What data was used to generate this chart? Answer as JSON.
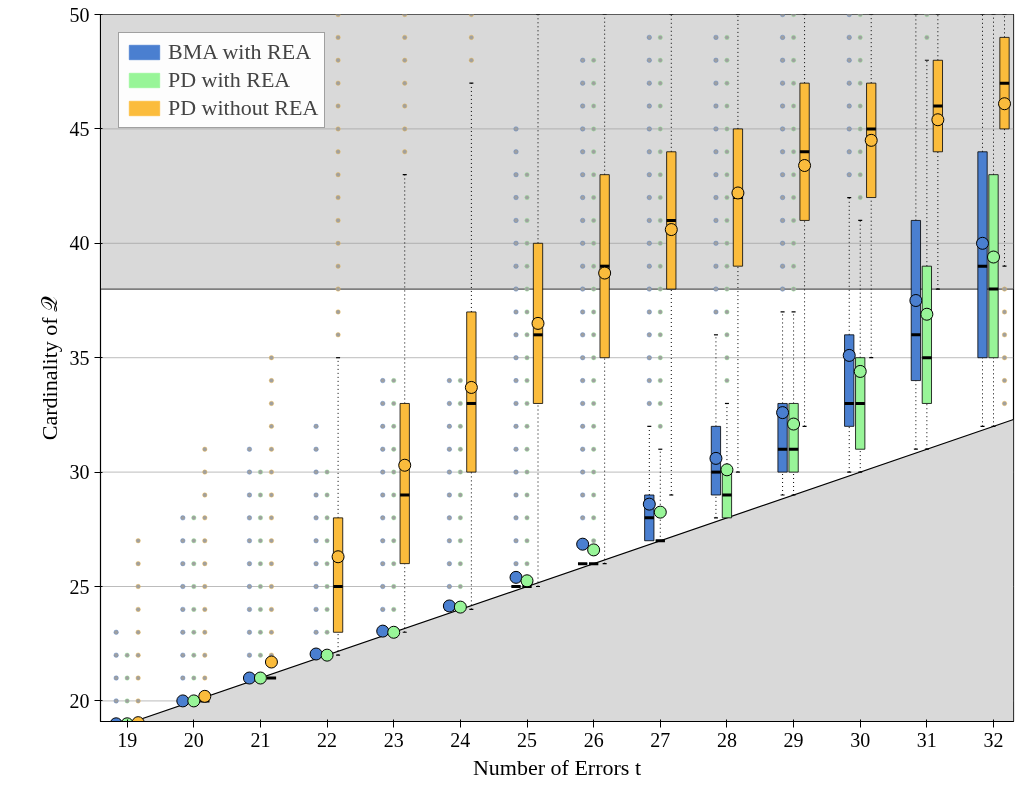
{
  "chart_data": {
    "type": "box",
    "xlabel": "Number of Errors t",
    "ylabel": "Cardinality of 𝒬",
    "x": [
      19,
      20,
      21,
      22,
      23,
      24,
      25,
      26,
      27,
      28,
      29,
      30,
      31,
      32
    ],
    "xlim": [
      18.6,
      32.3
    ],
    "xticks": [
      19,
      20,
      21,
      22,
      23,
      24,
      25,
      26,
      27,
      28,
      29,
      30,
      31,
      32
    ],
    "ylim": [
      19.1,
      50
    ],
    "yticks": [
      20,
      25,
      30,
      35,
      40,
      45,
      50
    ],
    "grid": "y",
    "legend": "top left",
    "bands": [
      {
        "axis": "y",
        "from": 38,
        "to": 50,
        "color": "#d9d9d9"
      }
    ],
    "ref_lines": [
      {
        "axis": "y",
        "value": 38,
        "color": "#555555"
      }
    ],
    "series": [
      {
        "name": "BMA with REA",
        "color": "#4a7fd0",
        "marker": "circle",
        "boxes": [
          {
            "low": 19,
            "q1": 19,
            "median": 19,
            "q3": 19,
            "high": 19,
            "mean": 19.0,
            "outliers": [
              20,
              21,
              22,
              23
            ]
          },
          {
            "low": 20,
            "q1": 20,
            "median": 20,
            "q3": 20,
            "high": 20,
            "mean": 20.0,
            "outliers": [
              21,
              22,
              23,
              24,
              25,
              26,
              27,
              28
            ]
          },
          {
            "low": 21,
            "q1": 21,
            "median": 21,
            "q3": 21,
            "high": 21,
            "mean": 21.0,
            "outliers": [
              22,
              23,
              24,
              25,
              26,
              27,
              28,
              29,
              30,
              31
            ]
          },
          {
            "low": 22,
            "q1": 22,
            "median": 22,
            "q3": 22,
            "high": 22,
            "mean": 22.05,
            "outliers": [
              23,
              24,
              25,
              26,
              27,
              28,
              29,
              30,
              31,
              32
            ]
          },
          {
            "low": 23,
            "q1": 23,
            "median": 23,
            "q3": 23,
            "high": 23,
            "mean": 23.05,
            "outliers": [
              24,
              25,
              26,
              27,
              28,
              29,
              30,
              31,
              32,
              33,
              34
            ]
          },
          {
            "low": 24,
            "q1": 24,
            "median": 24,
            "q3": 24,
            "high": 24,
            "mean": 24.15,
            "outliers": [
              25,
              26,
              27,
              28,
              29,
              30,
              31,
              32,
              33,
              34
            ]
          },
          {
            "low": 25,
            "q1": 25,
            "median": 25,
            "q3": 25,
            "high": 25,
            "mean": 25.4,
            "outliers": [
              26,
              27,
              28,
              29,
              30,
              31,
              32,
              33,
              34,
              35,
              36,
              37,
              38,
              39,
              40,
              41,
              42,
              43,
              44,
              45
            ]
          },
          {
            "low": 26,
            "q1": 26,
            "median": 26,
            "q3": 26,
            "high": 26,
            "mean": 26.85,
            "outliers": [
              27,
              28,
              29,
              30,
              31,
              32,
              33,
              34,
              35,
              36,
              37,
              38,
              39,
              40,
              41,
              42,
              43,
              44,
              45,
              46,
              47,
              48
            ]
          },
          {
            "low": 27,
            "q1": 27,
            "median": 28,
            "q3": 29,
            "high": 32,
            "mean": 28.6,
            "outliers": [
              33,
              34,
              35,
              36,
              37,
              38,
              39,
              40,
              41,
              42,
              43,
              44,
              45,
              46,
              47,
              48,
              49
            ]
          },
          {
            "low": 28,
            "q1": 29,
            "median": 30,
            "q3": 32,
            "high": 36,
            "mean": 30.6,
            "outliers": [
              37,
              38,
              39,
              40,
              41,
              42,
              43,
              44,
              45,
              46,
              47,
              48,
              49
            ]
          },
          {
            "low": 29,
            "q1": 30,
            "median": 31,
            "q3": 33,
            "high": 37,
            "mean": 32.6,
            "outliers": [
              38,
              39,
              40,
              41,
              42,
              43,
              44,
              45,
              46,
              47,
              48,
              49,
              50
            ]
          },
          {
            "low": 30,
            "q1": 32,
            "median": 33,
            "q3": 36,
            "high": 42,
            "mean": 35.1,
            "outliers": [
              43,
              44,
              45,
              46,
              47,
              48,
              49,
              50
            ]
          },
          {
            "low": 31,
            "q1": 34,
            "median": 36,
            "q3": 41,
            "high": 50,
            "mean": 37.5
          },
          {
            "low": 32,
            "q1": 35,
            "median": 39,
            "q3": 44,
            "high": 50,
            "mean": 40.0
          }
        ]
      },
      {
        "name": "PD with REA",
        "color": "#98f598",
        "marker": "circle",
        "boxes": [
          {
            "low": 19,
            "q1": 19,
            "median": 19,
            "q3": 19,
            "high": 19,
            "mean": 19.0,
            "outliers": [
              20,
              21,
              22
            ]
          },
          {
            "low": 20,
            "q1": 20,
            "median": 20,
            "q3": 20,
            "high": 20,
            "mean": 20.0,
            "outliers": [
              21,
              22,
              23,
              24,
              25,
              26,
              27,
              28
            ]
          },
          {
            "low": 21,
            "q1": 21,
            "median": 21,
            "q3": 21,
            "high": 21,
            "mean": 21.0,
            "outliers": [
              22,
              23,
              24,
              25,
              26,
              27,
              28,
              29,
              30
            ]
          },
          {
            "low": 22,
            "q1": 22,
            "median": 22,
            "q3": 22,
            "high": 22,
            "mean": 22.0,
            "outliers": [
              23,
              24,
              25,
              26,
              27,
              28,
              29,
              30
            ]
          },
          {
            "low": 23,
            "q1": 23,
            "median": 23,
            "q3": 23,
            "high": 23,
            "mean": 23.0,
            "outliers": [
              24,
              25,
              26,
              27,
              28,
              29,
              30,
              31,
              32,
              33,
              34
            ]
          },
          {
            "low": 24,
            "q1": 24,
            "median": 24,
            "q3": 24,
            "high": 24,
            "mean": 24.1,
            "outliers": [
              25,
              26,
              27,
              28,
              29,
              30,
              31,
              32,
              33,
              34
            ]
          },
          {
            "low": 25,
            "q1": 25,
            "median": 25,
            "q3": 25,
            "high": 25,
            "mean": 25.25,
            "outliers": [
              26,
              27,
              28,
              29,
              30,
              31,
              32,
              33,
              34,
              35,
              36,
              37,
              38,
              39,
              40,
              41,
              42,
              43
            ]
          },
          {
            "low": 26,
            "q1": 26,
            "median": 26,
            "q3": 26,
            "high": 26,
            "mean": 26.6,
            "outliers": [
              27,
              28,
              29,
              30,
              31,
              32,
              33,
              34,
              35,
              36,
              37,
              38,
              39,
              40,
              41,
              42,
              43,
              44,
              45,
              46,
              47,
              48
            ]
          },
          {
            "low": 27,
            "q1": 27,
            "median": 27,
            "q3": 27,
            "high": 31,
            "mean": 28.25,
            "outliers": [
              32,
              33,
              34,
              35,
              36,
              37,
              38,
              39,
              40,
              41,
              42,
              43,
              44,
              45,
              46,
              47,
              48,
              49
            ]
          },
          {
            "low": 28,
            "q1": 28,
            "median": 29,
            "q3": 30,
            "high": 33,
            "mean": 30.1,
            "outliers": [
              34,
              35,
              36,
              37,
              38,
              39,
              40,
              41,
              42,
              43,
              44,
              45,
              46,
              47,
              48,
              49
            ]
          },
          {
            "low": 29,
            "q1": 30,
            "median": 31,
            "q3": 33,
            "high": 37,
            "mean": 32.1,
            "outliers": [
              38,
              39,
              40,
              41,
              42,
              43,
              44,
              45,
              46,
              47,
              48,
              49,
              50
            ]
          },
          {
            "low": 30,
            "q1": 31,
            "median": 33,
            "q3": 35,
            "high": 41,
            "mean": 34.4,
            "outliers": [
              42,
              43,
              44,
              45,
              46,
              47,
              48,
              49,
              50
            ]
          },
          {
            "low": 31,
            "q1": 33,
            "median": 35,
            "q3": 39,
            "high": 48,
            "mean": 36.9,
            "outliers": [
              49,
              50
            ]
          },
          {
            "low": 32,
            "q1": 35,
            "median": 38,
            "q3": 43,
            "high": 50,
            "mean": 39.4
          }
        ]
      },
      {
        "name": "PD without REA",
        "color": "#fbbc3c",
        "marker": "circle",
        "boxes": [
          {
            "low": 19,
            "q1": 19,
            "median": 19,
            "q3": 19,
            "high": 19,
            "mean": 19.05,
            "outliers": [
              20,
              21,
              22,
              23,
              24,
              25,
              26,
              27
            ]
          },
          {
            "low": 20,
            "q1": 20,
            "median": 20,
            "q3": 20,
            "high": 20,
            "mean": 20.2,
            "outliers": [
              21,
              22,
              23,
              24,
              25,
              26,
              27,
              28,
              29,
              30,
              31
            ]
          },
          {
            "low": 21,
            "q1": 21,
            "median": 21,
            "q3": 21,
            "high": 21,
            "mean": 21.7,
            "outliers": [
              22,
              23,
              24,
              25,
              26,
              27,
              28,
              29,
              30,
              31,
              32,
              33,
              34,
              35
            ]
          },
          {
            "low": 22,
            "q1": 23,
            "median": 25,
            "q3": 28,
            "high": 35,
            "mean": 26.3,
            "outliers": [
              36,
              37,
              38,
              39,
              40,
              41,
              42,
              43,
              44,
              45,
              46,
              47,
              48,
              49,
              50
            ]
          },
          {
            "low": 23,
            "q1": 26,
            "median": 29,
            "q3": 33,
            "high": 43,
            "mean": 30.3,
            "outliers": [
              44,
              45,
              46,
              47,
              48,
              49,
              50
            ]
          },
          {
            "low": 24,
            "q1": 30,
            "median": 33,
            "q3": 37,
            "high": 47,
            "mean": 33.7,
            "outliers": [
              48,
              49,
              50
            ]
          },
          {
            "low": 25,
            "q1": 33,
            "median": 36,
            "q3": 40,
            "high": 50,
            "mean": 36.5
          },
          {
            "low": 26,
            "q1": 35,
            "median": 39,
            "q3": 43,
            "high": 50,
            "mean": 38.7
          },
          {
            "low": 29,
            "q1": 38,
            "median": 41,
            "q3": 44,
            "high": 50,
            "mean": 40.6
          },
          {
            "low": 30,
            "q1": 39,
            "median": 42,
            "q3": 45,
            "high": 50,
            "mean": 42.2
          },
          {
            "low": 32,
            "q1": 41,
            "median": 44,
            "q3": 47,
            "high": 50,
            "mean": 43.4
          },
          {
            "low": 35,
            "q1": 42,
            "median": 45,
            "q3": 47,
            "high": 50,
            "mean": 44.5
          },
          {
            "low": 38,
            "q1": 44,
            "median": 46,
            "q3": 48,
            "high": 50,
            "mean": 45.4
          },
          {
            "low": 39,
            "q1": 45,
            "median": 47,
            "q3": 49,
            "high": 50,
            "mean": 46.1,
            "outliers": [
              33,
              34,
              35,
              36,
              37,
              38
            ]
          }
        ]
      },
      {
        "type": "area",
        "color": "#d9d9d9",
        "x": [
          19.1,
          32.3
        ],
        "values": [
          19.1,
          32.3
        ]
      }
    ]
  }
}
